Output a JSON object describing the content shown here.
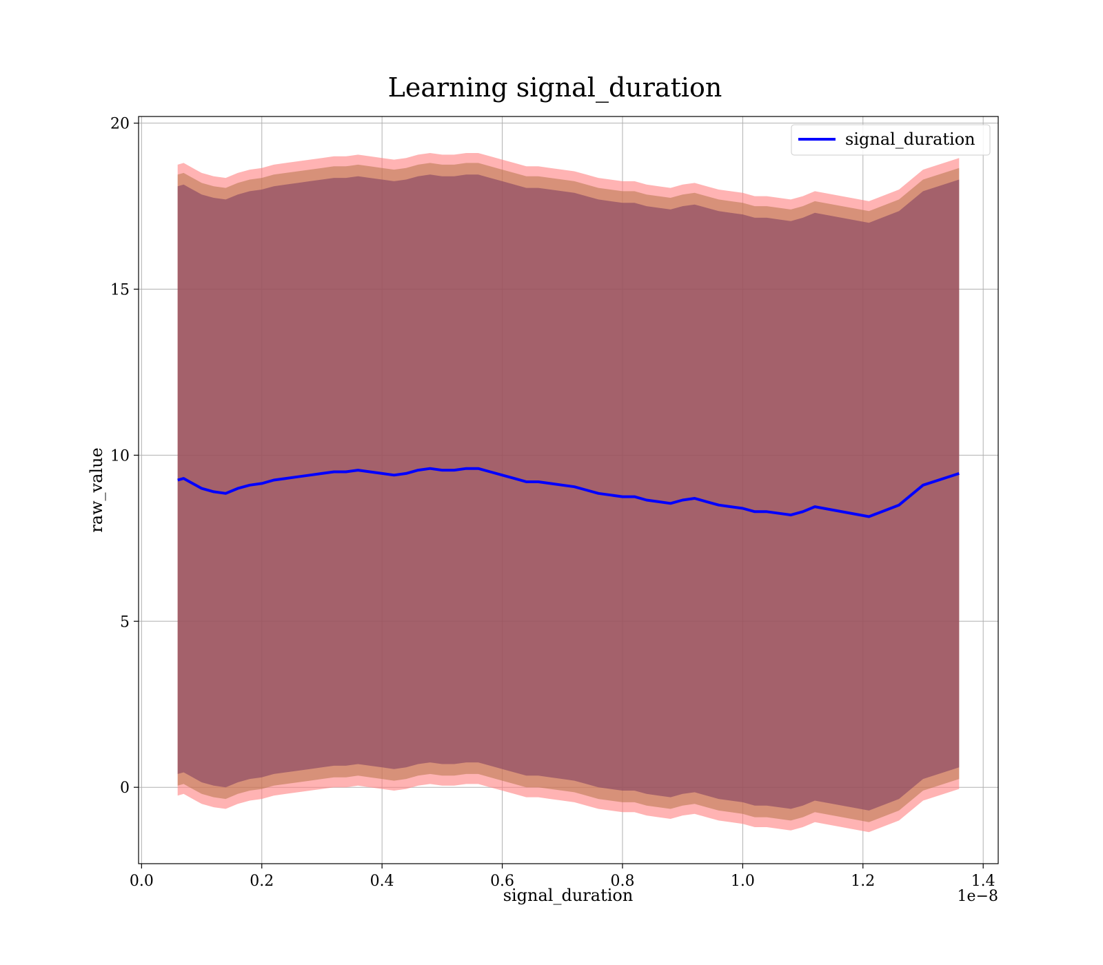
{
  "chart_data": {
    "type": "line",
    "title": "Learning signal_duration",
    "xlabel": "signal_duration",
    "ylabel": "raw_value",
    "x_offset_text": "1e−8",
    "xlim": [
      -0.005,
      1.425
    ],
    "ylim": [
      -2.3,
      20.2
    ],
    "x_ticks": [
      0.0,
      0.2,
      0.4,
      0.6,
      0.8,
      1.0,
      1.2,
      1.4
    ],
    "x_tick_labels": [
      "0.0",
      "0.2",
      "0.4",
      "0.6",
      "0.8",
      "1.0",
      "1.2",
      "1.4"
    ],
    "y_ticks": [
      0,
      5,
      10,
      15,
      20
    ],
    "y_tick_labels": [
      "0",
      "5",
      "10",
      "15",
      "20"
    ],
    "grid": true,
    "legend": {
      "position": "top-right",
      "entries": [
        "signal_duration"
      ]
    },
    "x": [
      0.06,
      0.07,
      0.08,
      0.09,
      0.1,
      0.12,
      0.14,
      0.16,
      0.18,
      0.2,
      0.22,
      0.24,
      0.26,
      0.28,
      0.3,
      0.32,
      0.34,
      0.36,
      0.38,
      0.4,
      0.42,
      0.44,
      0.46,
      0.48,
      0.5,
      0.52,
      0.54,
      0.56,
      0.58,
      0.6,
      0.62,
      0.64,
      0.66,
      0.68,
      0.7,
      0.72,
      0.74,
      0.76,
      0.78,
      0.8,
      0.82,
      0.84,
      0.86,
      0.88,
      0.9,
      0.92,
      0.94,
      0.96,
      0.98,
      1.0,
      1.02,
      1.04,
      1.06,
      1.08,
      1.1,
      1.12,
      1.21,
      1.26,
      1.3,
      1.36
    ],
    "series": [
      {
        "name": "signal_duration",
        "color": "#0000ff",
        "values": [
          9.25,
          9.3,
          9.2,
          9.1,
          9.0,
          8.9,
          8.85,
          9.0,
          9.1,
          9.15,
          9.25,
          9.3,
          9.35,
          9.4,
          9.45,
          9.5,
          9.5,
          9.55,
          9.5,
          9.45,
          9.4,
          9.45,
          9.55,
          9.6,
          9.55,
          9.55,
          9.6,
          9.6,
          9.5,
          9.4,
          9.3,
          9.2,
          9.2,
          9.15,
          9.1,
          9.05,
          8.95,
          8.85,
          8.8,
          8.75,
          8.75,
          8.65,
          8.6,
          8.55,
          8.65,
          8.7,
          8.6,
          8.5,
          8.45,
          8.4,
          8.3,
          8.3,
          8.25,
          8.2,
          8.3,
          8.45,
          8.15,
          8.5,
          9.1,
          9.45
        ]
      }
    ],
    "bands": [
      {
        "color": "#ff8080",
        "opacity": 0.6,
        "half_width": 9.5
      },
      {
        "color": "#b07040",
        "opacity": 0.5,
        "half_width": 9.2
      },
      {
        "color": "#7a3a60",
        "opacity": 0.55,
        "half_width": 8.85
      }
    ]
  }
}
